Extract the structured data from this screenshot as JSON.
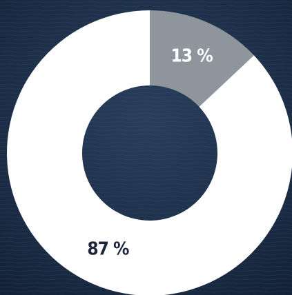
{
  "chart_data": {
    "type": "donut",
    "categories": [
      null,
      null
    ],
    "values": [
      13,
      87
    ],
    "value_labels": [
      "13 %",
      "87 %"
    ],
    "colors": [
      "#8e959d",
      "#ffffff"
    ]
  }
}
